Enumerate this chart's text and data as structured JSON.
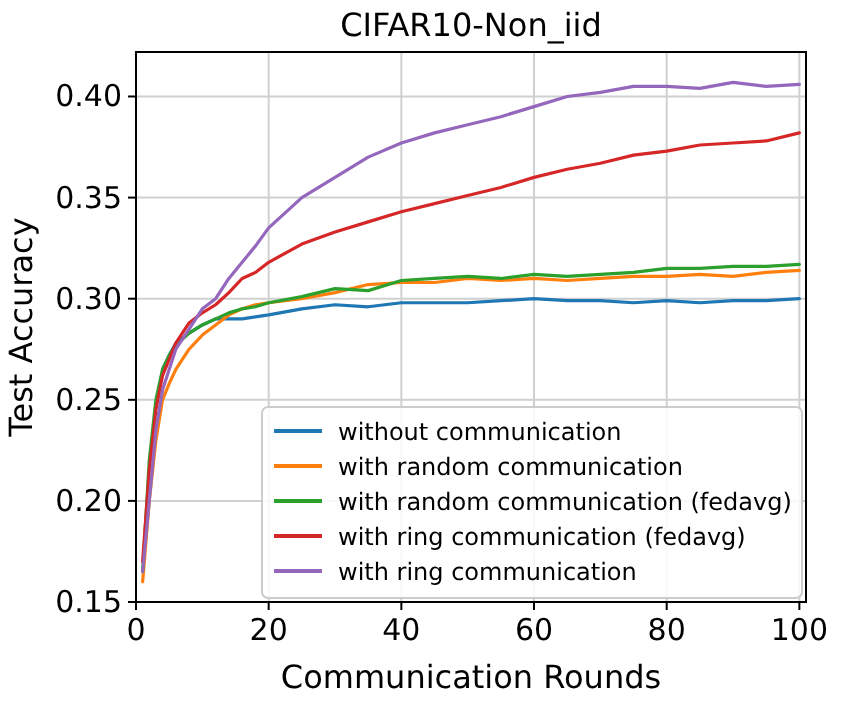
{
  "chart_data": {
    "type": "line",
    "title": "CIFAR10-Non_iid",
    "xlabel": "Communication Rounds",
    "ylabel": "Test Accuracy",
    "x": [
      1,
      2,
      3,
      4,
      5,
      6,
      8,
      10,
      12,
      14,
      16,
      18,
      20,
      25,
      30,
      35,
      40,
      45,
      50,
      55,
      60,
      65,
      70,
      75,
      80,
      85,
      90,
      95,
      100
    ],
    "series": [
      {
        "name": "without communication",
        "color": "#1f77b4",
        "values": [
          null,
          null,
          null,
          0.265,
          0.272,
          0.278,
          0.283,
          0.287,
          0.29,
          0.29,
          0.29,
          0.291,
          0.292,
          0.295,
          0.297,
          0.296,
          0.298,
          0.298,
          0.298,
          0.299,
          0.3,
          0.299,
          0.299,
          0.298,
          0.299,
          0.298,
          0.299,
          0.299,
          0.3
        ]
      },
      {
        "name": "with random communication",
        "color": "#ff7f0e",
        "values": [
          0.16,
          0.2,
          0.23,
          0.25,
          0.258,
          0.265,
          0.275,
          0.282,
          0.287,
          0.292,
          0.295,
          0.297,
          0.298,
          0.3,
          0.303,
          0.307,
          0.308,
          0.308,
          0.31,
          0.309,
          0.31,
          0.309,
          0.31,
          0.311,
          0.311,
          0.312,
          0.311,
          0.313,
          0.314
        ]
      },
      {
        "name": "with random communication (fedavg)",
        "color": "#2ca02c",
        "values": [
          0.165,
          0.22,
          0.25,
          0.265,
          0.272,
          0.277,
          0.283,
          0.287,
          0.29,
          0.293,
          0.295,
          0.296,
          0.298,
          0.301,
          0.305,
          0.304,
          0.309,
          0.31,
          0.311,
          0.31,
          0.312,
          0.311,
          0.312,
          0.313,
          0.315,
          0.315,
          0.316,
          0.316,
          0.317
        ]
      },
      {
        "name": "with ring communication (fedavg)",
        "color": "#d62728",
        "values": [
          0.17,
          0.215,
          0.245,
          0.262,
          0.27,
          0.278,
          0.288,
          0.293,
          0.297,
          0.303,
          0.31,
          0.313,
          0.318,
          0.327,
          0.333,
          0.338,
          0.343,
          0.347,
          0.351,
          0.355,
          0.36,
          0.364,
          0.367,
          0.371,
          0.373,
          0.376,
          0.377,
          0.378,
          0.382
        ]
      },
      {
        "name": "with ring communication",
        "color": "#9467bd",
        "values": [
          0.165,
          0.2,
          0.235,
          0.255,
          0.265,
          0.275,
          0.285,
          0.295,
          0.3,
          0.31,
          0.318,
          0.326,
          0.335,
          0.35,
          0.36,
          0.37,
          0.377,
          0.382,
          0.386,
          0.39,
          0.395,
          0.4,
          0.402,
          0.405,
          0.405,
          0.404,
          0.407,
          0.405,
          0.406
        ]
      }
    ],
    "xlim": [
      0,
      101
    ],
    "xticks": [
      0,
      20,
      40,
      60,
      80,
      100
    ],
    "ylim": [
      0.15,
      0.422
    ],
    "yticks": [
      {
        "value": 0.15,
        "label": "0.15"
      },
      {
        "value": 0.2,
        "label": "0.20"
      },
      {
        "value": 0.25,
        "label": "0.25"
      },
      {
        "value": 0.3,
        "label": "0.30"
      },
      {
        "value": 0.35,
        "label": "0.35"
      },
      {
        "value": 0.4,
        "label": "0.40"
      }
    ],
    "grid": true,
    "legend": "bottom right",
    "marker": "none",
    "line_style": "solid"
  }
}
